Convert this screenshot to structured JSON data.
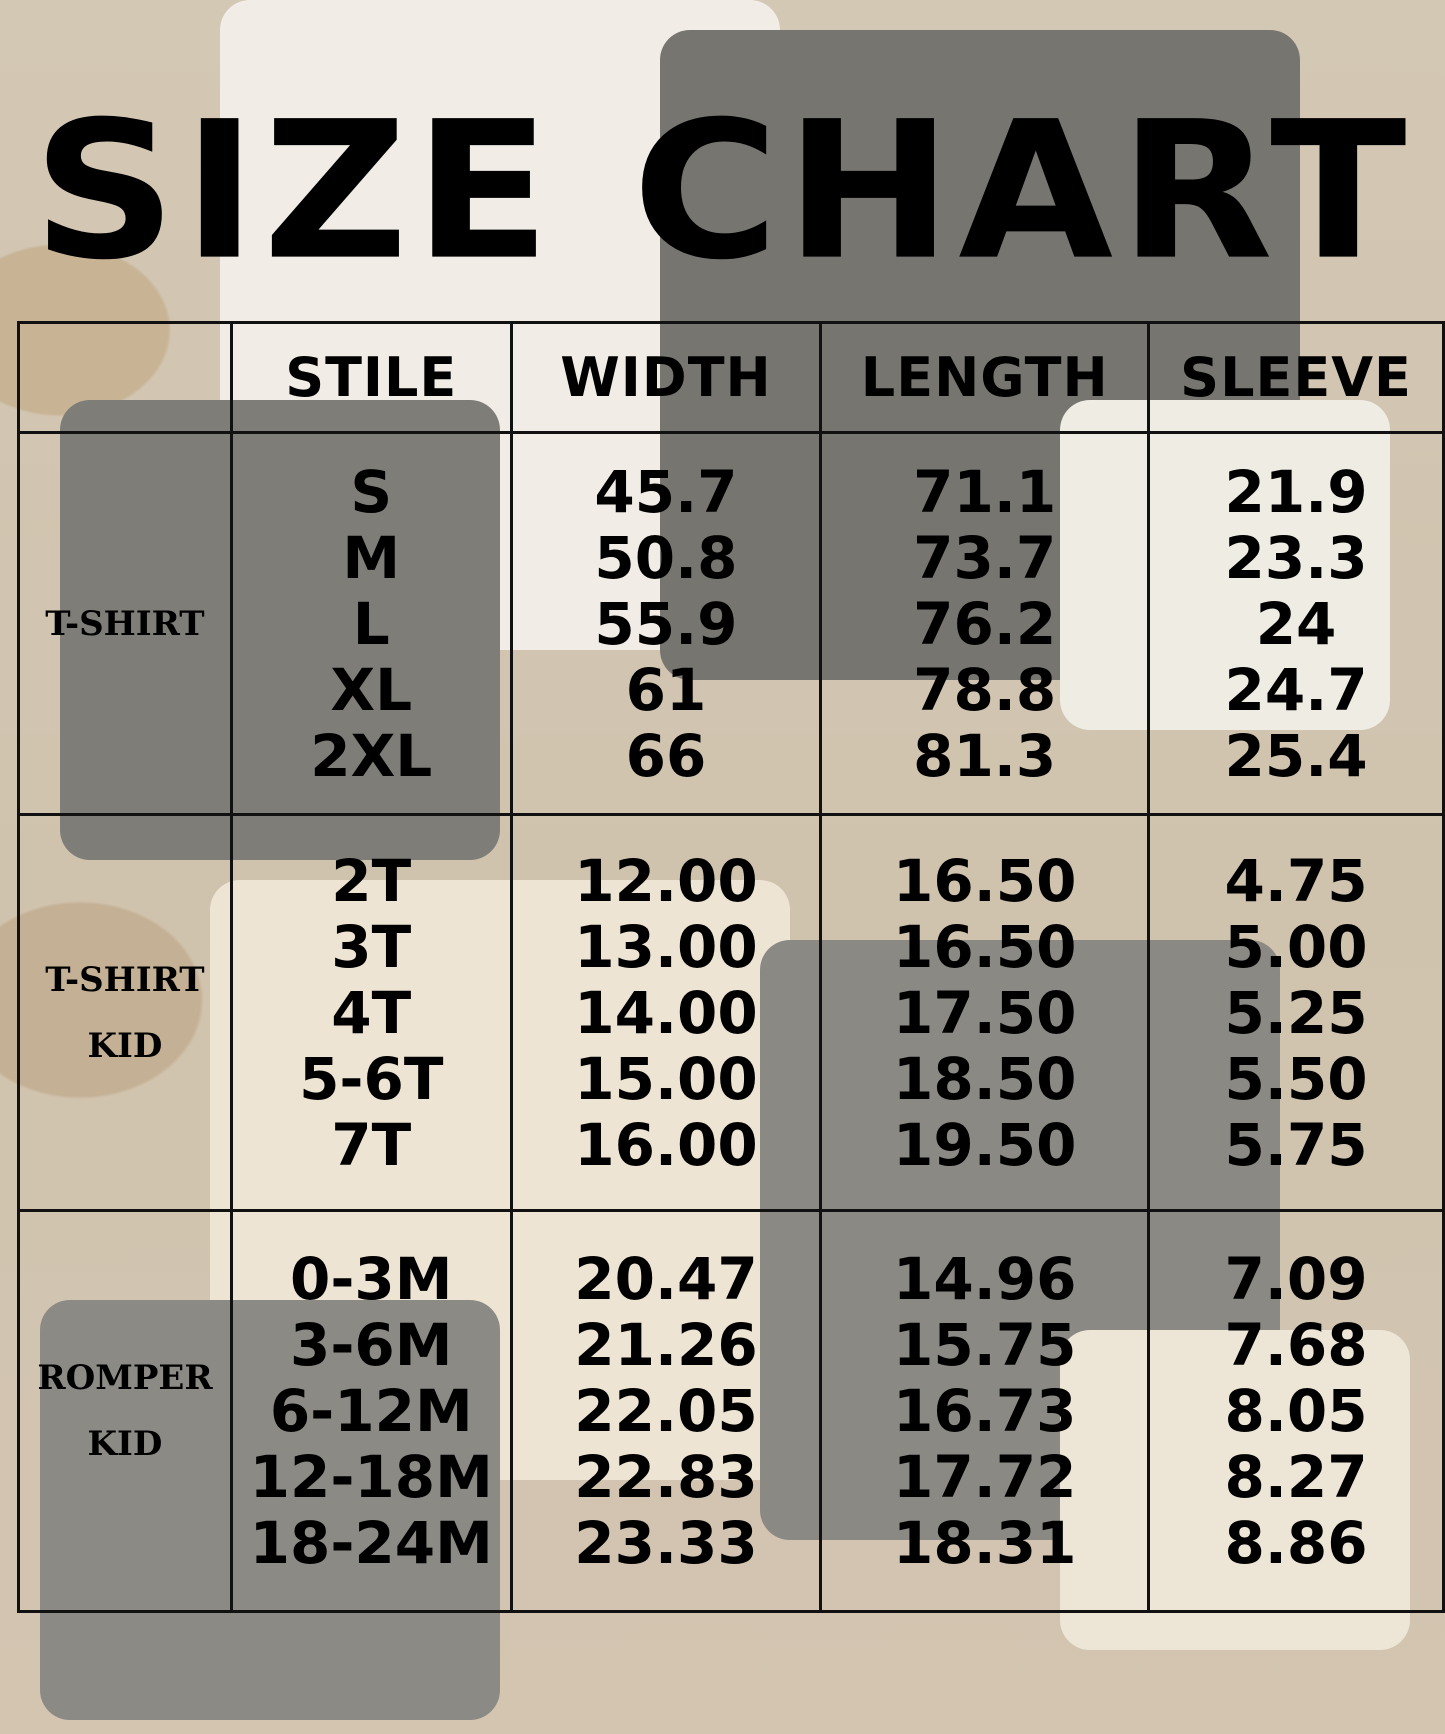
{
  "title": "SIZE CHART",
  "headers": [
    "",
    "STILE",
    "WIDTH",
    "LENGTH",
    "SLEEVE"
  ],
  "groups": [
    {
      "category": [
        "T-SHIRT"
      ],
      "sizes": [
        "S",
        "M",
        "L",
        "XL",
        "2XL"
      ],
      "width": [
        "45.7",
        "50.8",
        "55.9",
        "61",
        "66"
      ],
      "length": [
        "71.1",
        "73.7",
        "76.2",
        "78.8",
        "81.3"
      ],
      "sleeve": [
        "21.9",
        "23.3",
        "24",
        "24.7",
        "25.4"
      ]
    },
    {
      "category": [
        "T-SHIRT",
        "KID"
      ],
      "sizes": [
        "2T",
        "3T",
        "4T",
        "5-6T",
        "7T"
      ],
      "width": [
        "12.00",
        "13.00",
        "14.00",
        "15.00",
        "16.00"
      ],
      "length": [
        "16.50",
        "16.50",
        "17.50",
        "18.50",
        "19.50"
      ],
      "sleeve": [
        "4.75",
        "5.00",
        "5.25",
        "5.50",
        "5.75"
      ]
    },
    {
      "category": [
        "ROMPER",
        "KID"
      ],
      "sizes": [
        "0-3M",
        "3-6M",
        "6-12M",
        "12-18M",
        "18-24M"
      ],
      "width": [
        "20.47",
        "21.26",
        "22.05",
        "22.83",
        "23.33"
      ],
      "length": [
        "14.96",
        "15.75",
        "16.73",
        "17.72",
        "18.31"
      ],
      "sleeve": [
        "7.09",
        "7.68",
        "8.05",
        "8.27",
        "8.86"
      ]
    }
  ],
  "colors": {
    "text": "#000000",
    "background": "#bfae97"
  }
}
